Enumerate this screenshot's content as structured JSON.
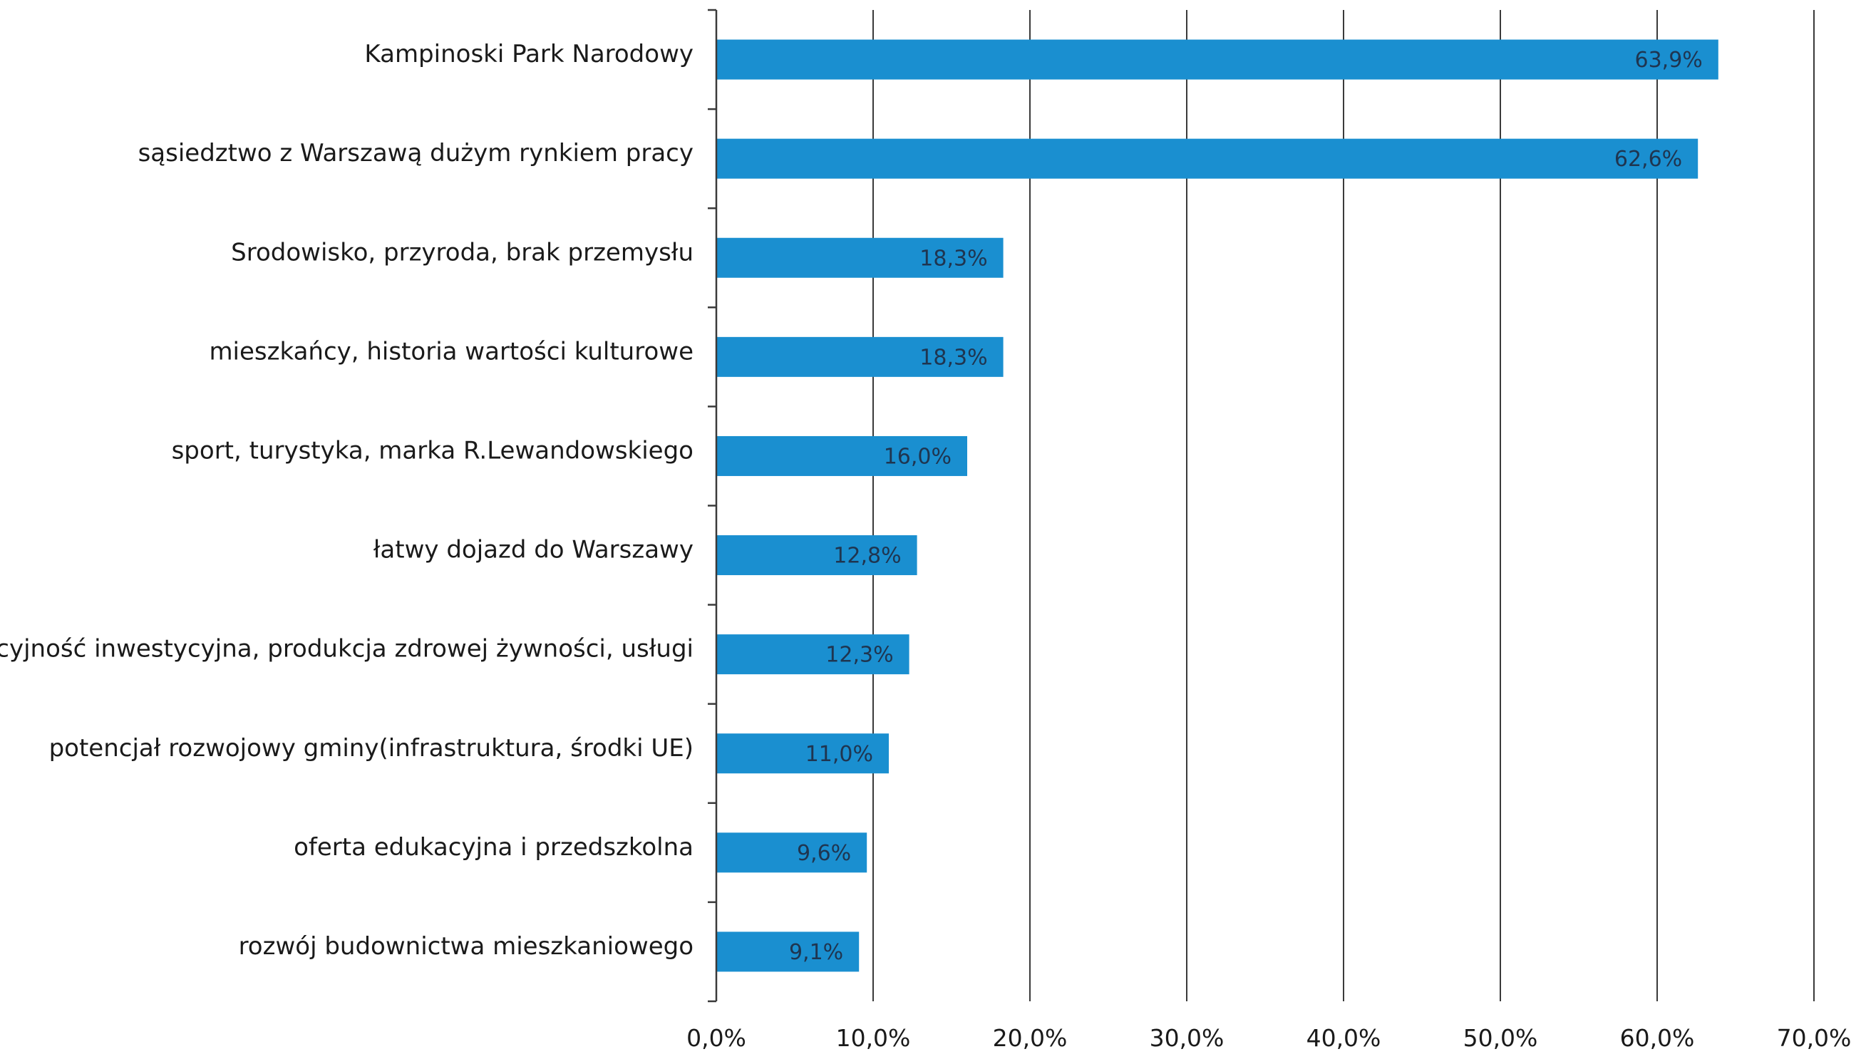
{
  "chart_data": {
    "type": "bar",
    "orientation": "horizontal",
    "categories": [
      "Kampinoski Park Narodowy",
      "sąsiedztwo z Warszawą dużym rynkiem pracy",
      "Srodowisko, przyroda, brak przemysłu",
      "mieszkańcy, historia wartości kulturowe",
      "sport, turystyka, marka R.Lewandowskiego",
      "łatwy dojazd do Warszawy",
      "atrakcyjność inwestycyjna, produkcja zdrowej żywności, usługi",
      "potencjał rozwojowy gminy(infrastruktura, środki UE)",
      "oferta edukacyjna i przedszkolna",
      "rozwój budownictwa mieszkaniowego"
    ],
    "values": [
      63.9,
      62.6,
      18.3,
      18.3,
      16.0,
      12.8,
      12.3,
      11.0,
      9.6,
      9.1
    ],
    "data_labels": [
      "63,9%",
      "62,6%",
      "18,3%",
      "18,3%",
      "16,0%",
      "12,8%",
      "12,3%",
      "11,0%",
      "9,6%",
      "9,1%"
    ],
    "xlim": [
      0,
      70
    ],
    "x_ticks": [
      0,
      10,
      20,
      30,
      40,
      50,
      60,
      70
    ],
    "x_tick_labels": [
      "0,0%",
      "10,0%",
      "20,0%",
      "30,0%",
      "40,0%",
      "50,0%",
      "60,0%",
      "70,0%"
    ],
    "title": "",
    "xlabel": "",
    "ylabel": "",
    "grid": "vertical",
    "legend": "none",
    "colors": {
      "bar": "#1a8fd0",
      "grid": "#3a3a3a",
      "axis": "#3a3a3a",
      "text": "#1a1a1a"
    }
  }
}
